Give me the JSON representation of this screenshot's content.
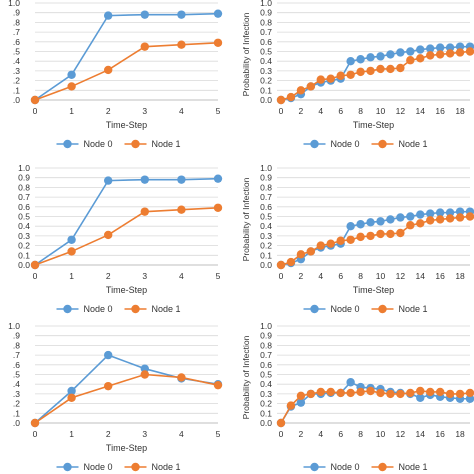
{
  "colors": {
    "node0": "#5b9bd5",
    "node1": "#ed7d31",
    "grid": "#d9d9d9",
    "axis": "#bfbfbf"
  },
  "chart_data": [
    {
      "type": "line",
      "xlabel": "Time-Step",
      "ylabel": "",
      "ylim": [
        0,
        1.0
      ],
      "yticks": [
        ".0",
        ".1",
        ".2",
        ".3",
        ".4",
        ".5",
        ".6",
        ".7",
        ".8",
        ".9",
        "1.0"
      ],
      "x": [
        0,
        1,
        2,
        3,
        4,
        5
      ],
      "xticks": [
        "0",
        "1",
        "2",
        "3",
        "4",
        "5"
      ],
      "series": [
        {
          "name": "Node 0",
          "values": [
            0.0,
            0.26,
            0.87,
            0.88,
            0.88,
            0.89
          ]
        },
        {
          "name": "Node 1",
          "values": [
            0.0,
            0.14,
            0.31,
            0.55,
            0.57,
            0.59
          ]
        }
      ],
      "legend": "bottom"
    },
    {
      "type": "line",
      "xlabel": "Time-Step",
      "ylabel": "Probability of Infection",
      "ylim": [
        0,
        1.0
      ],
      "yticks": [
        "0.0",
        "0.1",
        "0.2",
        "0.3",
        "0.4",
        "0.5",
        "0.6",
        "0.7",
        "0.8",
        "0.9",
        "1.0"
      ],
      "x": [
        0,
        1,
        2,
        3,
        4,
        5,
        6,
        7,
        8,
        9,
        10,
        11,
        12,
        13,
        14,
        15,
        16,
        17,
        18,
        19
      ],
      "xticks": [
        "0",
        "2",
        "4",
        "6",
        "8",
        "10",
        "12",
        "14",
        "16",
        "18"
      ],
      "series": [
        {
          "name": "Node 0",
          "values": [
            0.0,
            0.02,
            0.06,
            0.14,
            0.18,
            0.2,
            0.22,
            0.4,
            0.42,
            0.44,
            0.45,
            0.47,
            0.49,
            0.5,
            0.52,
            0.53,
            0.54,
            0.54,
            0.55,
            0.55
          ]
        },
        {
          "name": "Node 1",
          "values": [
            0.0,
            0.03,
            0.1,
            0.14,
            0.21,
            0.22,
            0.25,
            0.26,
            0.29,
            0.3,
            0.32,
            0.32,
            0.33,
            0.41,
            0.43,
            0.46,
            0.47,
            0.48,
            0.49,
            0.5
          ]
        }
      ],
      "legend": "bottom"
    },
    {
      "type": "line",
      "xlabel": "Time-Step",
      "ylabel": "",
      "ylim": [
        0,
        1.0
      ],
      "yticks": [
        "0.0",
        "0.1",
        "0.2",
        "0.3",
        "0.4",
        "0.5",
        "0.6",
        "0.7",
        "0.8",
        "0.9",
        "1.0"
      ],
      "x": [
        0,
        1,
        2,
        3,
        4,
        5
      ],
      "xticks": [
        "0",
        "1",
        "2",
        "3",
        "4",
        "5"
      ],
      "series": [
        {
          "name": "Node 0",
          "values": [
            0.0,
            0.26,
            0.87,
            0.88,
            0.88,
            0.89
          ]
        },
        {
          "name": "Node 1",
          "values": [
            0.0,
            0.14,
            0.31,
            0.55,
            0.57,
            0.59
          ]
        }
      ],
      "legend": "bottom"
    },
    {
      "type": "line",
      "xlabel": "Time-Step",
      "ylabel": "Probability of Infection",
      "ylim": [
        0,
        1.0
      ],
      "yticks": [
        "0.0",
        "0.1",
        "0.2",
        "0.3",
        "0.4",
        "0.5",
        "0.6",
        "0.7",
        "0.8",
        "0.9",
        "1.0"
      ],
      "x": [
        0,
        1,
        2,
        3,
        4,
        5,
        6,
        7,
        8,
        9,
        10,
        11,
        12,
        13,
        14,
        15,
        16,
        17,
        18,
        19
      ],
      "xticks": [
        "0",
        "2",
        "4",
        "6",
        "8",
        "10",
        "12",
        "14",
        "16",
        "18"
      ],
      "series": [
        {
          "name": "Node 0",
          "values": [
            0.0,
            0.02,
            0.06,
            0.14,
            0.18,
            0.2,
            0.22,
            0.4,
            0.42,
            0.44,
            0.45,
            0.47,
            0.49,
            0.5,
            0.52,
            0.53,
            0.54,
            0.54,
            0.55,
            0.55
          ]
        },
        {
          "name": "Node 1",
          "values": [
            0.0,
            0.03,
            0.11,
            0.14,
            0.2,
            0.22,
            0.25,
            0.26,
            0.29,
            0.3,
            0.32,
            0.32,
            0.33,
            0.41,
            0.43,
            0.46,
            0.47,
            0.48,
            0.49,
            0.5
          ]
        }
      ],
      "legend": "bottom"
    },
    {
      "type": "line",
      "xlabel": "Time-Step",
      "ylabel": "",
      "ylim": [
        0,
        1.0
      ],
      "yticks": [
        ".0",
        ".1",
        ".2",
        ".3",
        ".4",
        ".5",
        ".6",
        ".7",
        ".8",
        ".9",
        "1.0"
      ],
      "x": [
        0,
        1,
        2,
        3,
        4,
        5
      ],
      "xticks": [
        "0",
        "1",
        "2",
        "3",
        "4",
        "5"
      ],
      "series": [
        {
          "name": "Node 0",
          "values": [
            0.0,
            0.33,
            0.7,
            0.56,
            0.46,
            0.4
          ]
        },
        {
          "name": "Node 1",
          "values": [
            0.0,
            0.26,
            0.38,
            0.5,
            0.47,
            0.39
          ]
        }
      ],
      "legend": "bottom"
    },
    {
      "type": "line",
      "xlabel": "",
      "ylabel": "Probability of Infection",
      "ylim": [
        0,
        1.0
      ],
      "yticks": [
        "0.0",
        "0.1",
        "0.2",
        "0.3",
        "0.4",
        "0.5",
        "0.6",
        "0.7",
        "0.8",
        "0.9",
        "1.0"
      ],
      "x": [
        0,
        1,
        2,
        3,
        4,
        5,
        6,
        7,
        8,
        9,
        10,
        11,
        12,
        13,
        14,
        15,
        16,
        17,
        18,
        19
      ],
      "xticks": [
        "0",
        "2",
        "4",
        "6",
        "8",
        "10",
        "12",
        "14",
        "16",
        "18"
      ],
      "series": [
        {
          "name": "Node 0",
          "values": [
            0.0,
            0.17,
            0.21,
            0.3,
            0.3,
            0.31,
            0.31,
            0.42,
            0.37,
            0.36,
            0.35,
            0.32,
            0.31,
            0.3,
            0.26,
            0.29,
            0.27,
            0.26,
            0.25,
            0.25
          ]
        },
        {
          "name": "Node 1",
          "values": [
            0.0,
            0.18,
            0.28,
            0.3,
            0.32,
            0.32,
            0.31,
            0.31,
            0.32,
            0.33,
            0.31,
            0.3,
            0.3,
            0.31,
            0.33,
            0.32,
            0.32,
            0.3,
            0.3,
            0.31
          ]
        }
      ],
      "legend": "bottom"
    }
  ]
}
